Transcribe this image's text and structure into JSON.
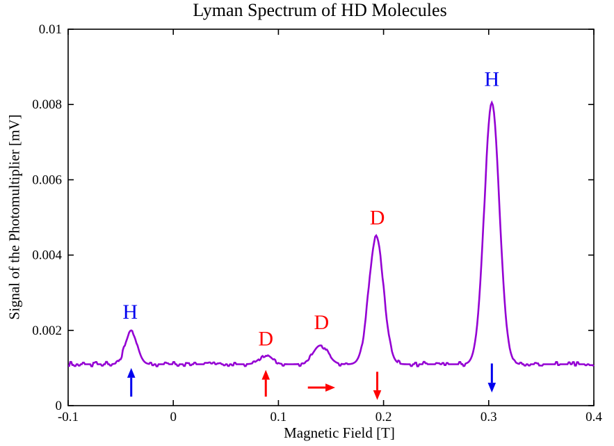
{
  "chart_data": {
    "type": "line",
    "title": "Lyman Spectrum of HD Molecules",
    "xlabel": "Magnetic Field [T]",
    "ylabel": "Signal of the Photomultiplier [mV]",
    "xlim": [
      -0.1,
      0.4
    ],
    "ylim": [
      0,
      0.01
    ],
    "xticks": [
      {
        "value": -0.1,
        "label": "-0.1"
      },
      {
        "value": 0,
        "label": "0"
      },
      {
        "value": 0.1,
        "label": "0.1"
      },
      {
        "value": 0.2,
        "label": "0.2"
      },
      {
        "value": 0.3,
        "label": "0.3"
      },
      {
        "value": 0.4,
        "label": "0.4"
      }
    ],
    "yticks": [
      {
        "value": 0,
        "label": "0"
      },
      {
        "value": 0.002,
        "label": "0.002"
      },
      {
        "value": 0.004,
        "label": "0.004"
      },
      {
        "value": 0.006,
        "label": "0.006"
      },
      {
        "value": 0.008,
        "label": "0.008"
      },
      {
        "value": 0.01,
        "label": "0.01"
      }
    ],
    "grid": false,
    "legend": null,
    "line_color": "#9400d3",
    "frame_color": "#000000",
    "baseline": 0.0011,
    "noise_amplitude": 5e-05,
    "peaks": [
      {
        "label": "H",
        "center": -0.04,
        "peak_value": 0.002,
        "sigma": 0.0055
      },
      {
        "label": "D",
        "center": 0.088,
        "peak_value": 0.00135,
        "sigma": 0.006
      },
      {
        "label": "D",
        "center": 0.14,
        "peak_value": 0.0016,
        "sigma": 0.007
      },
      {
        "label": "D",
        "center": 0.193,
        "peak_value": 0.0045,
        "sigma": 0.007
      },
      {
        "label": "H",
        "center": 0.303,
        "peak_value": 0.00805,
        "sigma": 0.0072
      }
    ],
    "annotations": [
      {
        "text": "H",
        "color": "#0000ee",
        "text_x": -0.041,
        "text_y": 0.0025,
        "arrow": {
          "direction": "up",
          "from": [
            -0.04,
            0.00024
          ],
          "to": [
            -0.04,
            0.001
          ]
        }
      },
      {
        "text": "D",
        "color": "#ff0000",
        "text_x": 0.088,
        "text_y": 0.00178,
        "arrow": {
          "direction": "up",
          "from": [
            0.088,
            0.00024
          ],
          "to": [
            0.088,
            0.00095
          ]
        }
      },
      {
        "text": "D",
        "color": "#ff0000",
        "text_x": 0.141,
        "text_y": 0.00222,
        "arrow": {
          "direction": "right",
          "from": [
            0.128,
            0.00048
          ],
          "to": [
            0.154,
            0.00048
          ]
        }
      },
      {
        "text": "D",
        "color": "#ff0000",
        "text_x": 0.194,
        "text_y": 0.005,
        "arrow": {
          "direction": "down",
          "from": [
            0.194,
            0.0009
          ],
          "to": [
            0.194,
            0.00015
          ]
        }
      },
      {
        "text": "H",
        "color": "#0000ee",
        "text_x": 0.303,
        "text_y": 0.00868,
        "arrow": {
          "direction": "down",
          "from": [
            0.303,
            0.00112
          ],
          "to": [
            0.303,
            0.00035
          ]
        }
      }
    ]
  }
}
